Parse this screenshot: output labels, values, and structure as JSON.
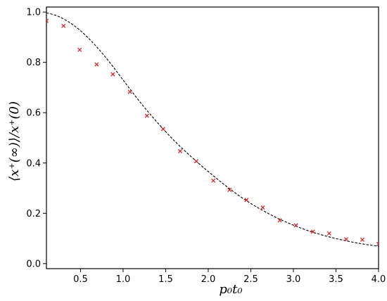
{
  "chart_data": {
    "type": "scatter",
    "xlabel": "p₀t₀",
    "ylabel": "⟨x⁺(∞)⟩/x⁺(0)",
    "xlim": [
      0.1,
      4.0
    ],
    "ylim": [
      -0.02,
      1.02
    ],
    "xticks": [
      "0.5",
      "1.0",
      "1.5",
      "2.0",
      "2.5",
      "3.0",
      "3.5",
      "4.0"
    ],
    "yticks": [
      "0.0",
      "0.2",
      "0.4",
      "0.6",
      "0.8",
      "1.0"
    ],
    "grid": false,
    "legend": "none",
    "colors": {
      "markers": "#d62728",
      "curve": "#000000"
    },
    "series": [
      {
        "kind": "scatter-markers",
        "marker": "x",
        "x": [
          0.1,
          0.3,
          0.49,
          0.69,
          0.88,
          1.08,
          1.28,
          1.47,
          1.67,
          1.86,
          2.06,
          2.25,
          2.45,
          2.64,
          2.84,
          3.03,
          3.23,
          3.42,
          3.62,
          3.81,
          4.0
        ],
        "y": [
          0.965,
          0.945,
          0.85,
          0.792,
          0.753,
          0.683,
          0.588,
          0.535,
          0.447,
          0.407,
          0.33,
          0.293,
          0.253,
          0.223,
          0.172,
          0.152,
          0.127,
          0.12,
          0.097,
          0.095,
          0.078
        ]
      },
      {
        "kind": "theory-curve",
        "style": "dashed",
        "x": [
          0.1,
          0.2,
          0.3,
          0.4,
          0.5,
          0.6,
          0.7,
          0.8,
          0.9,
          1.0,
          1.2,
          1.4,
          1.6,
          1.8,
          2.0,
          2.2,
          2.4,
          2.6,
          2.8,
          3.0,
          3.2,
          3.4,
          3.6,
          3.8,
          4.0
        ],
        "y": [
          0.997,
          0.988,
          0.973,
          0.952,
          0.926,
          0.894,
          0.858,
          0.818,
          0.775,
          0.73,
          0.642,
          0.562,
          0.489,
          0.425,
          0.366,
          0.311,
          0.261,
          0.219,
          0.183,
          0.153,
          0.128,
          0.108,
          0.092,
          0.079,
          0.069
        ]
      }
    ]
  }
}
